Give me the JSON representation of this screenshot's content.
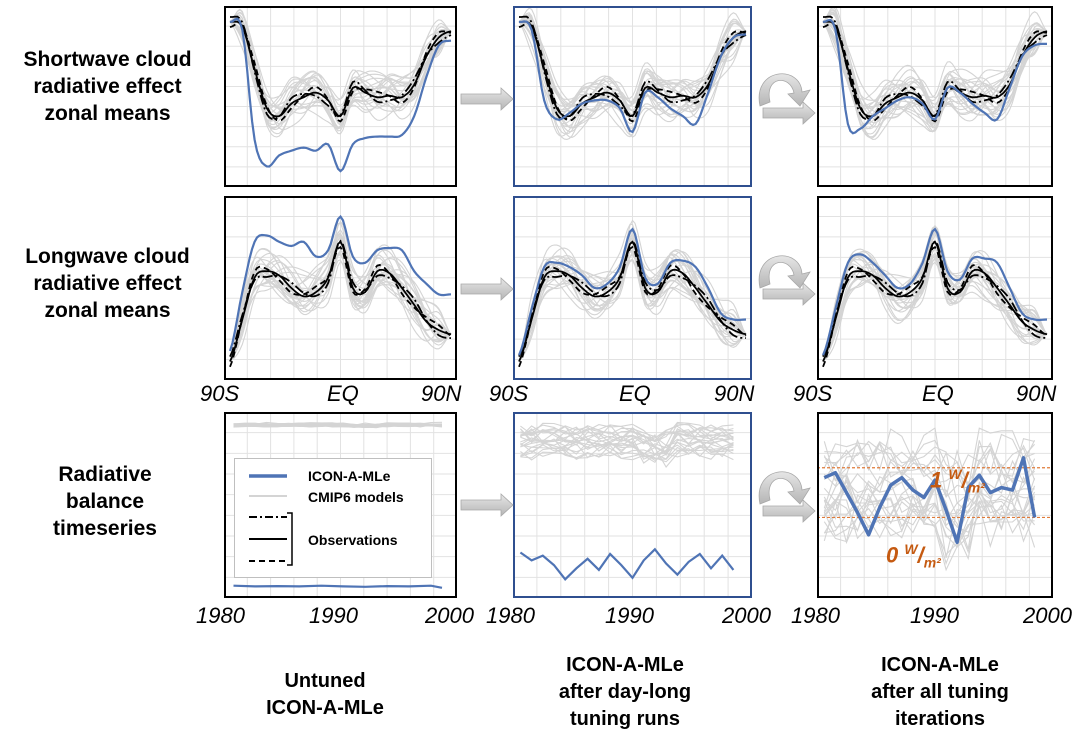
{
  "row_labels": {
    "shortwave": [
      "Shortwave cloud",
      "radiative effect",
      "zonal means"
    ],
    "longwave": [
      "Longwave cloud",
      "radiative effect",
      "zonal means"
    ],
    "balance": [
      "Radiative",
      "balance",
      "timeseries"
    ]
  },
  "column_labels": {
    "untuned": [
      "Untuned",
      "ICON-A-MLe"
    ],
    "daylong": [
      "ICON-A-MLe",
      "after day-long",
      "tuning runs"
    ],
    "all": [
      "ICON-A-MLe",
      "after all tuning",
      "iterations"
    ]
  },
  "lat_ticks": [
    "90S",
    "EQ",
    "90N"
  ],
  "year_ticks": [
    "1980",
    "1990",
    "2000"
  ],
  "legend": {
    "icon": "ICON-A-MLe",
    "cmip": "CMIP6 models",
    "obs": "Observations"
  },
  "annotations": {
    "one": "1",
    "zero": "0",
    "unit_num": "W",
    "unit_den": "m²"
  },
  "colors": {
    "icon": "#4f74b5",
    "cmip": "#d4d4d4",
    "obs": "#000000",
    "grid": "#e2e2e2",
    "ref_line": "#e07b39",
    "arrow": "#c9c9c9"
  },
  "chart_data": [
    {
      "type": "line",
      "panel": "shortwave-untuned",
      "x": [
        -90,
        -80,
        -70,
        -60,
        -50,
        -40,
        -30,
        -20,
        -10,
        0,
        10,
        20,
        30,
        40,
        50,
        60,
        70,
        80,
        90
      ],
      "series": [
        {
          "name": "ICON-A-MLe",
          "values": [
            0,
            -5,
            -75,
            -92,
            -85,
            -82,
            -80,
            -82,
            -78,
            -95,
            -78,
            -74,
            -73,
            -73,
            -72,
            -60,
            -35,
            -15,
            -12
          ]
        },
        {
          "name": "Observations",
          "values": [
            0,
            -3,
            -30,
            -55,
            -60,
            -52,
            -48,
            -45,
            -50,
            -60,
            -42,
            -45,
            -48,
            -47,
            -48,
            -40,
            -22,
            -10,
            -6
          ]
        }
      ],
      "ylim": [
        -100,
        5
      ]
    },
    {
      "type": "line",
      "panel": "shortwave-daylong",
      "x": [
        -90,
        -80,
        -70,
        -60,
        -50,
        -40,
        -30,
        -20,
        -10,
        0,
        10,
        20,
        30,
        40,
        50,
        60,
        70,
        80,
        90
      ],
      "series": [
        {
          "name": "ICON-A-MLe",
          "values": [
            0,
            -5,
            -50,
            -62,
            -58,
            -52,
            -50,
            -50,
            -55,
            -70,
            -45,
            -48,
            -55,
            -60,
            -65,
            -45,
            -22,
            -10,
            -8
          ]
        }
      ],
      "ylim": [
        -100,
        5
      ]
    },
    {
      "type": "line",
      "panel": "shortwave-all",
      "x": [
        -90,
        -80,
        -70,
        -60,
        -50,
        -40,
        -30,
        -20,
        -10,
        0,
        10,
        20,
        30,
        40,
        50,
        60,
        70,
        80,
        90
      ],
      "series": [
        {
          "name": "ICON-A-MLe",
          "values": [
            0,
            -5,
            -65,
            -68,
            -60,
            -55,
            -50,
            -48,
            -52,
            -62,
            -42,
            -45,
            -52,
            -58,
            -62,
            -42,
            -22,
            -15,
            -14
          ]
        }
      ],
      "ylim": [
        -100,
        5
      ]
    },
    {
      "type": "line",
      "panel": "longwave-untuned",
      "x": [
        -90,
        -80,
        -70,
        -60,
        -50,
        -40,
        -30,
        -20,
        -10,
        0,
        10,
        20,
        30,
        40,
        50,
        60,
        70,
        80,
        90
      ],
      "series": [
        {
          "name": "ICON-A-MLe",
          "values": [
            10,
            38,
            62,
            65,
            62,
            60,
            62,
            55,
            58,
            74,
            55,
            52,
            58,
            59,
            58,
            48,
            42,
            37,
            37
          ]
        },
        {
          "name": "Observations",
          "values": [
            5,
            25,
            45,
            48,
            46,
            40,
            36,
            38,
            45,
            62,
            40,
            38,
            48,
            47,
            40,
            32,
            24,
            20,
            18
          ]
        }
      ],
      "ylim": [
        0,
        80
      ]
    },
    {
      "type": "line",
      "panel": "longwave-daylong",
      "x": [
        -90,
        -80,
        -70,
        -60,
        -50,
        -40,
        -30,
        -20,
        -10,
        0,
        10,
        20,
        30,
        40,
        50,
        60,
        70,
        80,
        90
      ],
      "series": [
        {
          "name": "ICON-A-MLe",
          "values": [
            8,
            30,
            50,
            52,
            50,
            46,
            40,
            42,
            50,
            68,
            45,
            42,
            52,
            53,
            50,
            40,
            28,
            25,
            25
          ]
        }
      ],
      "ylim": [
        0,
        80
      ]
    },
    {
      "type": "line",
      "panel": "longwave-all",
      "x": [
        -90,
        -80,
        -70,
        -60,
        -50,
        -40,
        -30,
        -20,
        -10,
        0,
        10,
        20,
        30,
        40,
        50,
        60,
        70,
        80,
        90
      ],
      "series": [
        {
          "name": "ICON-A-MLe",
          "values": [
            8,
            30,
            52,
            56,
            52,
            46,
            40,
            42,
            52,
            68,
            48,
            44,
            54,
            54,
            52,
            40,
            28,
            25,
            25
          ]
        }
      ],
      "ylim": [
        0,
        80
      ]
    },
    {
      "type": "line",
      "panel": "balance-untuned",
      "x": [
        1980,
        1982,
        1984,
        1986,
        1988,
        1990,
        1992,
        1994,
        1996,
        1998,
        1999
      ],
      "series": [
        {
          "name": "ICON-A-MLe",
          "values": [
            -22.1,
            -22.2,
            -22.15,
            -22.2,
            -22.1,
            -22.2,
            -22.25,
            -22.15,
            -22.2,
            -22.1,
            -22.4
          ]
        },
        {
          "name": "CMIP6 models",
          "values": [
            1.2,
            1.0,
            1.1,
            0.9,
            1.0,
            1.1,
            0.5,
            1.0,
            1.1,
            1.2,
            1.1
          ]
        }
      ],
      "ylim": [
        -23,
        2
      ]
    },
    {
      "type": "line",
      "panel": "balance-daylong",
      "x": [
        1980,
        1981,
        1982,
        1983,
        1984,
        1985,
        1986,
        1987,
        1988,
        1989,
        1990,
        1991,
        1992,
        1993,
        1994,
        1995,
        1996,
        1997,
        1998,
        1999
      ],
      "series": [
        {
          "name": "ICON-A-MLe",
          "values": [
            -6.5,
            -7.0,
            -6.7,
            -7.3,
            -8.2,
            -7.5,
            -6.9,
            -7.6,
            -6.6,
            -7.3,
            -8.1,
            -7.0,
            -6.3,
            -7.2,
            -7.9,
            -7.1,
            -6.6,
            -7.5,
            -6.7,
            -7.6
          ]
        }
      ],
      "ylim": [
        -9,
        2
      ]
    },
    {
      "type": "line",
      "panel": "balance-all",
      "x": [
        1980,
        1981,
        1982,
        1983,
        1984,
        1985,
        1986,
        1987,
        1988,
        1989,
        1990,
        1991,
        1992,
        1993,
        1994,
        1995,
        1996,
        1997,
        1998,
        1999
      ],
      "series": [
        {
          "name": "ICON-A-MLe",
          "values": [
            0.8,
            0.9,
            0.5,
            0.1,
            -0.35,
            0.2,
            0.65,
            0.8,
            0.55,
            0.4,
            0.75,
            0.15,
            -0.5,
            0.6,
            0.85,
            0.5,
            0.6,
            0.55,
            1.2,
            0.0
          ]
        }
      ],
      "ylim": [
        -1.5,
        2
      ]
    }
  ]
}
